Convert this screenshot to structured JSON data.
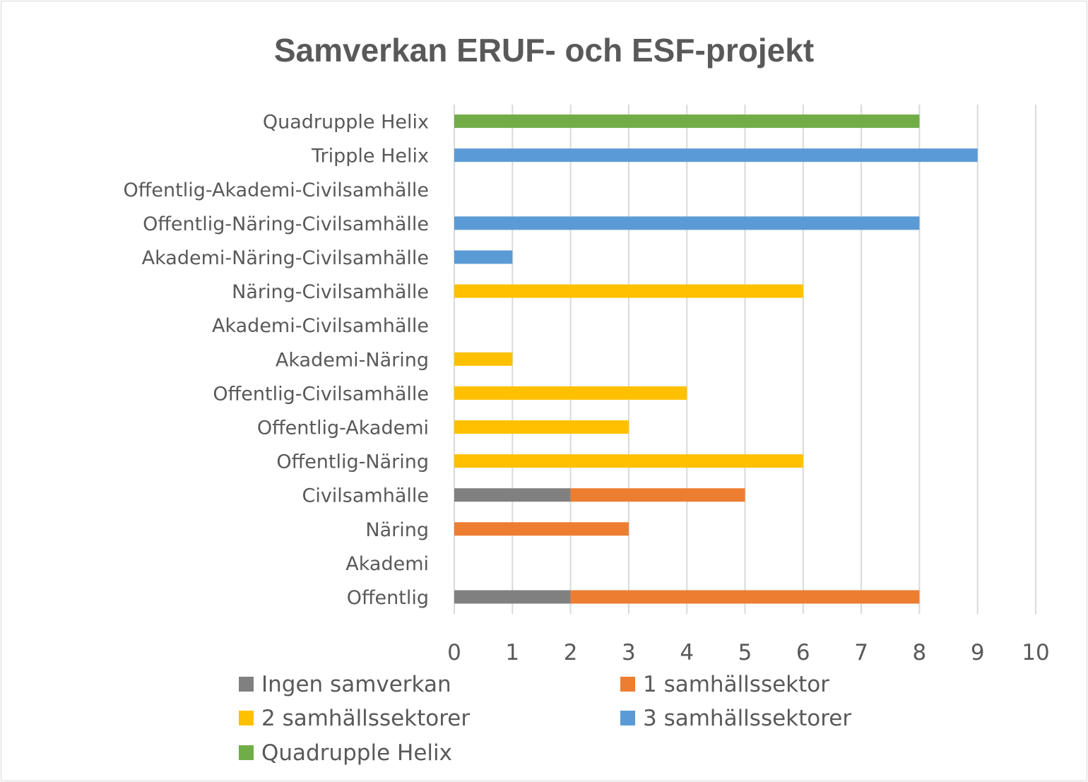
{
  "chart_data": {
    "type": "bar",
    "orientation": "horizontal",
    "stacked": true,
    "title": "Samverkan ERUF- och ESF-projekt",
    "categories": [
      "Offentlig",
      "Akademi",
      "Näring",
      "Civilsamhälle",
      "Offentlig-Näring",
      "Offentlig-Akademi",
      "Offentlig-Civilsamhälle",
      "Akademi-Näring",
      "Akademi-Civilsamhälle",
      "Näring-Civilsamhälle",
      "Akademi-Näring-Civilsamhälle",
      "Offentlig-Näring-Civilsamhälle",
      "Offentlig-Akademi-Civilsamhälle",
      "Tripple Helix",
      "Quadrupple Helix"
    ],
    "series": [
      {
        "name": "Ingen samverkan",
        "color": "#808080",
        "values": [
          2,
          0,
          0,
          2,
          0,
          0,
          0,
          0,
          0,
          0,
          0,
          0,
          0,
          0,
          0
        ]
      },
      {
        "name": "1 samhällssektor",
        "color": "#ed7d31",
        "values": [
          6,
          0,
          3,
          3,
          0,
          0,
          0,
          0,
          0,
          0,
          0,
          0,
          0,
          0,
          0
        ]
      },
      {
        "name": "2 samhällssektorer",
        "color": "#ffc000",
        "values": [
          0,
          0,
          0,
          0,
          6,
          3,
          4,
          1,
          0,
          6,
          0,
          0,
          0,
          0,
          0
        ]
      },
      {
        "name": "3 samhällssektorer",
        "color": "#5b9bd5",
        "values": [
          0,
          0,
          0,
          0,
          0,
          0,
          0,
          0,
          0,
          0,
          1,
          8,
          0,
          9,
          0
        ]
      },
      {
        "name": "Quadrupple Helix",
        "color": "#70ad47",
        "values": [
          0,
          0,
          0,
          0,
          0,
          0,
          0,
          0,
          0,
          0,
          0,
          0,
          0,
          0,
          8
        ]
      }
    ],
    "xlim": [
      0,
      10
    ],
    "xticks": [
      "0",
      "1",
      "2",
      "3",
      "4",
      "5",
      "6",
      "7",
      "8",
      "9",
      "10"
    ],
    "grid": "vertical",
    "legend": "bottom"
  }
}
